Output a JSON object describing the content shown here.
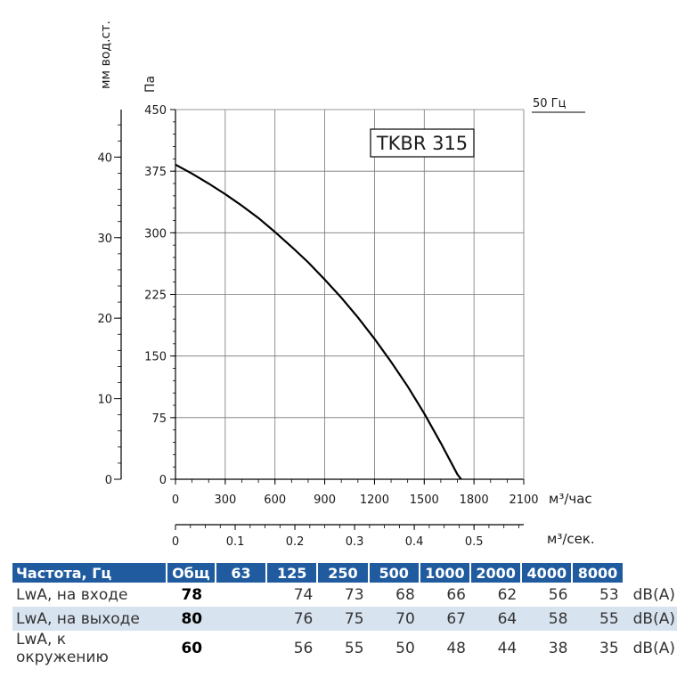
{
  "chart_data": {
    "type": "line",
    "title": "TKBR 315",
    "frequency_label": "50 Гц",
    "y_left_label": "мм вод.ст.",
    "y_label": "Па",
    "x_label": "м³/час",
    "x2_label": "м³/сек.",
    "x_ticks": [
      "0",
      "300",
      "600",
      "900",
      "1200",
      "1500",
      "1800",
      "2100"
    ],
    "y_ticks": [
      "0",
      "75",
      "150",
      "225",
      "300",
      "375",
      "450"
    ],
    "y_left_ticks": [
      "0",
      "10",
      "20",
      "30",
      "40"
    ],
    "x2_ticks": [
      "0",
      "0.1",
      "0.2",
      "0.3",
      "0.4",
      "0.5"
    ],
    "xlim": [
      0,
      2100
    ],
    "ylim": [
      0,
      450
    ],
    "y_left_lim": [
      0,
      45.9
    ],
    "x2_lim": [
      0,
      0.5833
    ],
    "grid": true,
    "series": [
      {
        "x": [
          0,
          100,
          200,
          300,
          400,
          500,
          600,
          700,
          800,
          900,
          1000,
          1100,
          1200,
          1300,
          1400,
          1500,
          1600,
          1700,
          1800
        ],
        "values": [
          383,
          372,
          360,
          347,
          333,
          318,
          301,
          283,
          264,
          243,
          221,
          197,
          171,
          143,
          113,
          80,
          44,
          6,
          -20
        ]
      }
    ]
  },
  "noise_table": {
    "headers": [
      "Частота, Гц",
      "Общ",
      "63",
      "125",
      "250",
      "500",
      "1000",
      "2000",
      "4000",
      "8000"
    ],
    "rows": [
      {
        "label": "LwA, на входе",
        "total": "78",
        "values": [
          "",
          "74",
          "73",
          "68",
          "66",
          "62",
          "56",
          "53"
        ],
        "unit": "dB(A)"
      },
      {
        "label": "LwA, на выходе",
        "total": "80",
        "values": [
          "",
          "76",
          "75",
          "70",
          "67",
          "64",
          "58",
          "55"
        ],
        "unit": "dB(A)"
      },
      {
        "label": "LwA, к окружению",
        "total": "60",
        "values": [
          "",
          "56",
          "55",
          "50",
          "48",
          "44",
          "38",
          "35"
        ],
        "unit": "dB(A)"
      }
    ]
  },
  "colors": {
    "header_bg": "#1f5b9e",
    "row_shade": "#d8e3f0",
    "grid": "#666666",
    "curve": "#000000"
  }
}
